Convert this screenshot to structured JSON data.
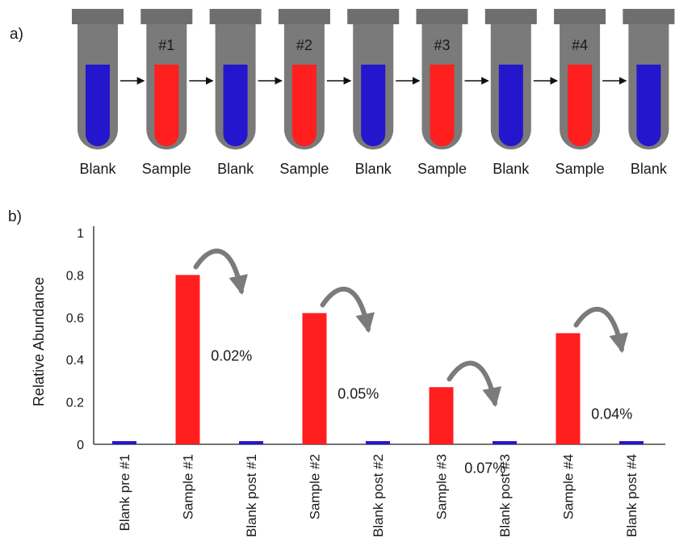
{
  "panel_a": {
    "label": "a)",
    "tubes": [
      {
        "kind": "blank",
        "label": "Blank",
        "number": ""
      },
      {
        "kind": "sample",
        "label": "Sample",
        "number": "#1"
      },
      {
        "kind": "blank",
        "label": "Blank",
        "number": ""
      },
      {
        "kind": "sample",
        "label": "Sample",
        "number": "#2"
      },
      {
        "kind": "blank",
        "label": "Blank",
        "number": ""
      },
      {
        "kind": "sample",
        "label": "Sample",
        "number": "#3"
      },
      {
        "kind": "blank",
        "label": "Blank",
        "number": ""
      },
      {
        "kind": "sample",
        "label": "Sample",
        "number": "#4"
      },
      {
        "kind": "blank",
        "label": "Blank",
        "number": ""
      }
    ]
  },
  "panel_b": {
    "label": "b)"
  },
  "colors": {
    "blank": "#2416cc",
    "sample": "#ff1f1f",
    "tube": "#7a7a7a",
    "cap": "#6e6e6e",
    "curve_arrow": "#7b7b7b"
  },
  "chart_data": {
    "type": "bar",
    "categories": [
      "Blank pre #1",
      "Sample #1",
      "Blank post #1",
      "Sample #2",
      "Blank post #2",
      "Sample #3",
      "Blank post #3",
      "Sample #4",
      "Blank post #4"
    ],
    "values": [
      0.015,
      0.8,
      0.015,
      0.62,
      0.015,
      0.27,
      0.015,
      0.525,
      0.015
    ],
    "kinds": [
      "blank",
      "sample",
      "blank",
      "sample",
      "blank",
      "sample",
      "blank",
      "sample",
      "blank"
    ],
    "ylabel": "Relative Abundance",
    "xlabel": "",
    "ylim": [
      0,
      1
    ],
    "yticks": [
      {
        "value": 0,
        "label": "0"
      },
      {
        "value": 0.2,
        "label": "0.2"
      },
      {
        "value": 0.4,
        "label": "0.4"
      },
      {
        "value": 0.6,
        "label": "0.6"
      },
      {
        "value": 0.8,
        "label": "0.8"
      },
      {
        "value": 1,
        "label": "1"
      }
    ],
    "annotations": [
      {
        "from": 1,
        "to": 2,
        "text": "0.02%"
      },
      {
        "from": 3,
        "to": 4,
        "text": "0.05%"
      },
      {
        "from": 5,
        "to": 6,
        "text": "0.07%"
      },
      {
        "from": 7,
        "to": 8,
        "text": "0.04%"
      }
    ],
    "grid": false,
    "legend": "none"
  }
}
